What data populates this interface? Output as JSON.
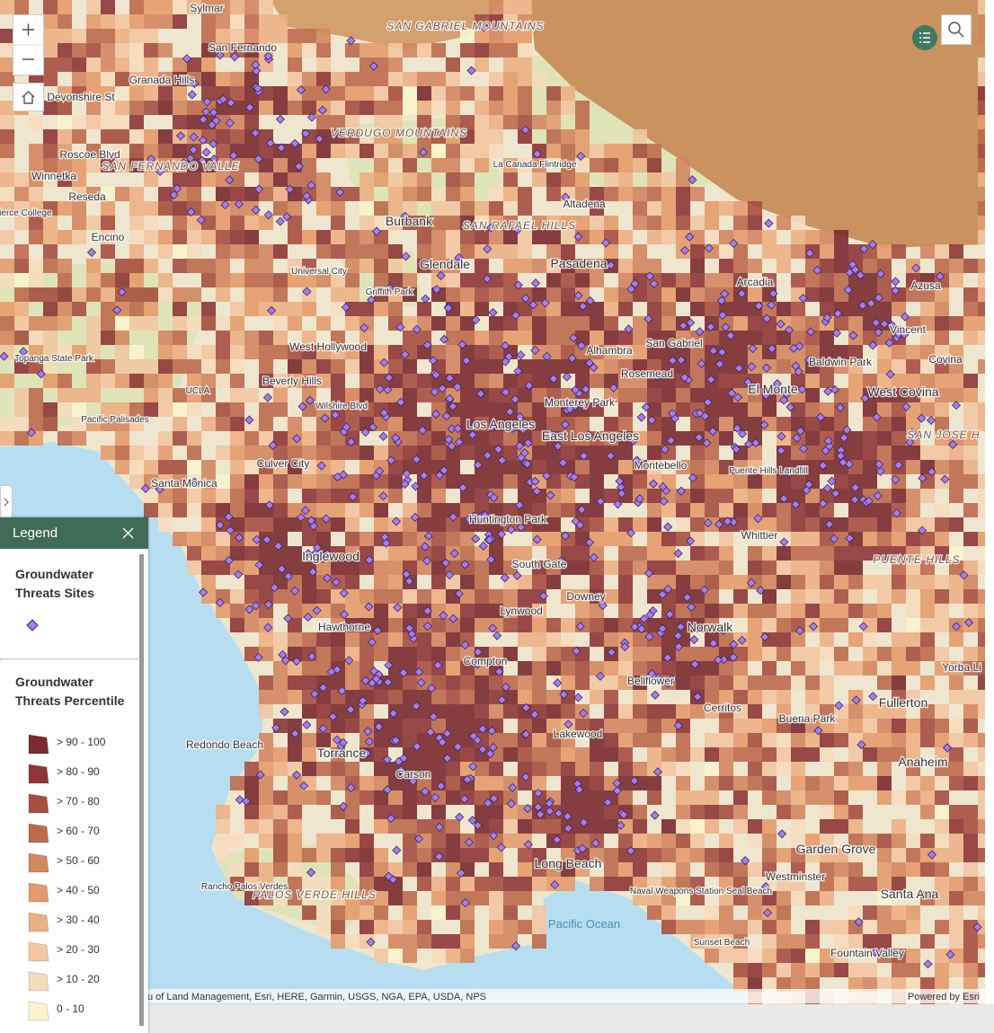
{
  "map_labels": [
    {
      "text": "Sylmar"
    },
    {
      "text": "SAN GABRIEL MOUNTAINS"
    },
    {
      "text": "San Fernando"
    },
    {
      "text": "Granada Hills"
    },
    {
      "text": "Devonshire St"
    },
    {
      "text": "Roscoe Blvd"
    },
    {
      "text": "SAN FERNANDO VALLE"
    },
    {
      "text": "Winnetka"
    },
    {
      "text": "Reseda"
    },
    {
      "text": "Pierce College"
    },
    {
      "text": "Encino"
    },
    {
      "text": "VERDUGO MOUNTAINS"
    },
    {
      "text": "La Canada Flintridge"
    },
    {
      "text": "Altadena"
    },
    {
      "text": "SAN RAFAEL HILLS"
    },
    {
      "text": "Burbank"
    },
    {
      "text": "Glendale"
    },
    {
      "text": "Pasadena"
    },
    {
      "text": "Universal City"
    },
    {
      "text": "Griffith Park"
    },
    {
      "text": "Arcadia"
    },
    {
      "text": "Azusa"
    },
    {
      "text": "Vincent"
    },
    {
      "text": "Baldwin Park"
    },
    {
      "text": "Covina"
    },
    {
      "text": "West Covina"
    },
    {
      "text": "El Monte"
    },
    {
      "text": "San Gabriel"
    },
    {
      "text": "Alhambra"
    },
    {
      "text": "Rosemead"
    },
    {
      "text": "Monterey Park"
    },
    {
      "text": "West Hollywood"
    },
    {
      "text": "Beverly Hills"
    },
    {
      "text": "UCLA"
    },
    {
      "text": "Wilshire Blvd"
    },
    {
      "text": "Pacific Palisades"
    },
    {
      "text": "Topanga State Park"
    },
    {
      "text": "Los Angeles"
    },
    {
      "text": "East Los Angeles"
    },
    {
      "text": "Montebello"
    },
    {
      "text": "SAN JOSE H"
    },
    {
      "text": "Puente Hills Landfill"
    },
    {
      "text": "Culver City"
    },
    {
      "text": "Santa Monica"
    },
    {
      "text": "Huntington Park"
    },
    {
      "text": "Whittier"
    },
    {
      "text": "PUENTE HILLS"
    },
    {
      "text": "Inglewood"
    },
    {
      "text": "South Gate"
    },
    {
      "text": "Downey"
    },
    {
      "text": "Lynwood"
    },
    {
      "text": "Hawthorne"
    },
    {
      "text": "Norwalk"
    },
    {
      "text": "Yorba Li"
    },
    {
      "text": "Compton"
    },
    {
      "text": "Bellflower"
    },
    {
      "text": "Cerritos"
    },
    {
      "text": "Fullerton"
    },
    {
      "text": "Buena Park"
    },
    {
      "text": "Redondo Beach"
    },
    {
      "text": "Torrance"
    },
    {
      "text": "Lakewood"
    },
    {
      "text": "Carson"
    },
    {
      "text": "Anaheim"
    },
    {
      "text": "Garden Grove"
    },
    {
      "text": "Long Beach"
    },
    {
      "text": "Westminster"
    },
    {
      "text": "Rancho Palos Verdes"
    },
    {
      "text": "PALOS VERDE HILLS"
    },
    {
      "text": "Pacific Ocean"
    },
    {
      "text": "Santa Ana"
    },
    {
      "text": "Sunset Beach"
    },
    {
      "text": "Fountain Valley"
    },
    {
      "text": "Naval Weapons Station Seal Beach"
    }
  ],
  "attribution": "u of Land Management, Esri, HERE, Garmin, USGS, NGA, EPA, USDA, NPS",
  "powered_by": "Powered by Esri",
  "legend": {
    "title": "Legend",
    "layers": [
      {
        "title": "Groundwater Threats Sites",
        "color": "#a77cf0"
      },
      {
        "title": "Groundwater Threats Percentile",
        "classes": [
          {
            "label": "> 90 - 100",
            "color": "#7a2a30"
          },
          {
            "label": "> 80 - 90",
            "color": "#8e3636"
          },
          {
            "label": "> 70 - 80",
            "color": "#a64f40"
          },
          {
            "label": "> 60 - 70",
            "color": "#bc6a4e"
          },
          {
            "label": "> 50 - 60",
            "color": "#d3865f"
          },
          {
            "label": "> 40 - 50",
            "color": "#e39b6c"
          },
          {
            "label": "> 30 - 40",
            "color": "#ecb085"
          },
          {
            "label": "> 20 - 30",
            "color": "#f2c7a2"
          },
          {
            "label": "> 10 - 20",
            "color": "#f6dbbd"
          },
          {
            "label": "0 - 10",
            "color": "#faf4cc"
          }
        ]
      }
    ]
  }
}
